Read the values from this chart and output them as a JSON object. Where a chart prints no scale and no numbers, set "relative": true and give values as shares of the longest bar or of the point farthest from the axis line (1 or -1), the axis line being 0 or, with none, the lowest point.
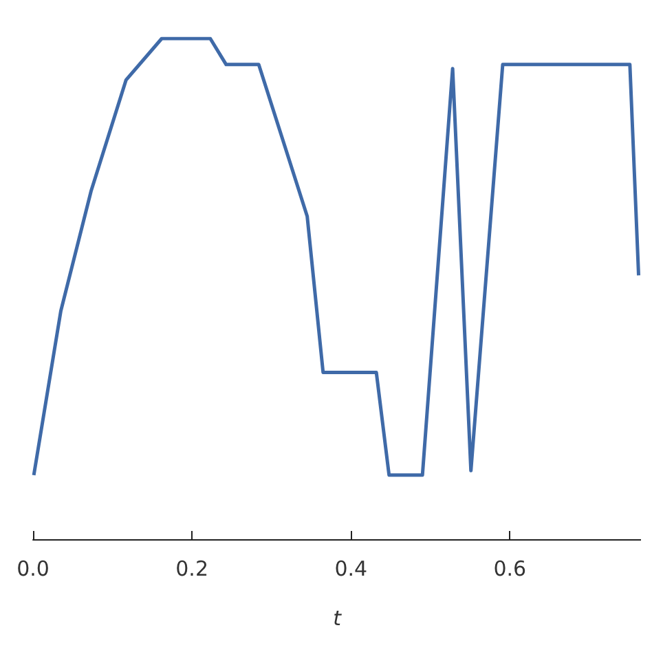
{
  "chart_data": {
    "type": "line",
    "relative": true,
    "xlabel": "t",
    "xlim": [
      0,
      0.765
    ],
    "xticks": [
      {
        "value": 0,
        "label": "0.0"
      },
      {
        "value": 0.2,
        "label": "0.2"
      },
      {
        "value": 0.4,
        "label": "0.4"
      },
      {
        "value": 0.6,
        "label": "0.6"
      }
    ],
    "grid": false,
    "marker": "none",
    "line_style": "solid",
    "series": [
      {
        "color": "#3f6aa8",
        "x": [
          0.001,
          0.035,
          0.073,
          0.117,
          0.162,
          0.223,
          0.243,
          0.284,
          0.345,
          0.365,
          0.432,
          0.448,
          0.49,
          0.528,
          0.551,
          0.591,
          0.751,
          0.762
        ],
        "values": [
          0.128,
          0.456,
          0.695,
          0.917,
          1,
          1,
          0.948,
          0.948,
          0.645,
          0.333,
          0.333,
          0.128,
          0.128,
          0.94,
          0.137,
          0.948,
          0.948,
          0.527
        ]
      }
    ]
  }
}
